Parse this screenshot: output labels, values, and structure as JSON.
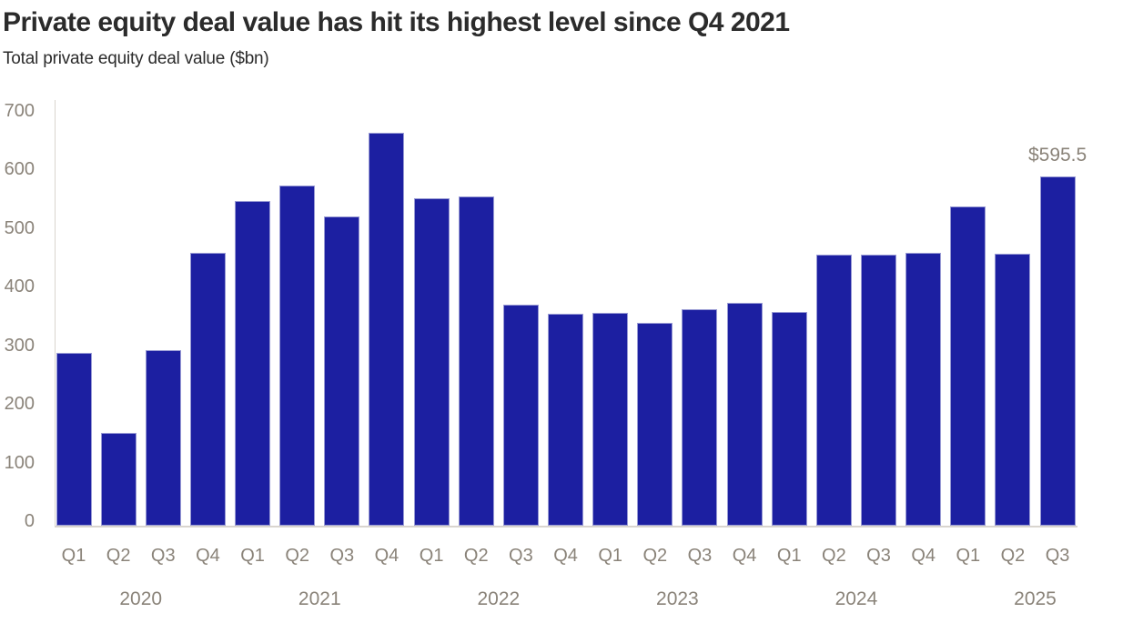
{
  "chart_data": {
    "type": "bar",
    "title": "Private equity deal value has hit its highest level since Q4 2021",
    "subtitle": "Total private equity deal value ($bn)",
    "ylabel": "Total private equity deal value ($bn)",
    "ylim": [
      0,
      700
    ],
    "yticks": [
      0,
      100,
      200,
      300,
      400,
      500,
      600,
      700
    ],
    "grid": false,
    "legend": false,
    "x_axis_style": "quarters grouped by year, year label centered under each group",
    "year_groups": [
      {
        "year": "2020",
        "quarters": [
          "Q1",
          "Q2",
          "Q3",
          "Q4"
        ],
        "values": [
          295,
          158,
          299,
          465
        ]
      },
      {
        "year": "2021",
        "quarters": [
          "Q1",
          "Q2",
          "Q3",
          "Q4"
        ],
        "values": [
          554,
          581,
          528,
          670
        ]
      },
      {
        "year": "2022",
        "quarters": [
          "Q1",
          "Q2",
          "Q3",
          "Q4"
        ],
        "values": [
          558,
          562,
          377,
          362
        ]
      },
      {
        "year": "2023",
        "quarters": [
          "Q1",
          "Q2",
          "Q3",
          "Q4"
        ],
        "values": [
          363,
          346,
          369,
          381
        ]
      },
      {
        "year": "2024",
        "quarters": [
          "Q1",
          "Q2",
          "Q3",
          "Q4"
        ],
        "values": [
          364,
          462,
          462,
          465
        ]
      },
      {
        "year": "2025",
        "quarters": [
          "Q1",
          "Q2",
          "Q3"
        ],
        "values": [
          545,
          464,
          595.5
        ]
      }
    ],
    "annotation": {
      "text": "$595.5",
      "category": "Q3 2025"
    },
    "colors": {
      "bar": "#1c1fa1",
      "bar_stroke": "rgba(255,255,255,0.55)",
      "axis_line": "#d9d5cf",
      "label": "#8a8379",
      "title": "#2b2b2b"
    }
  }
}
